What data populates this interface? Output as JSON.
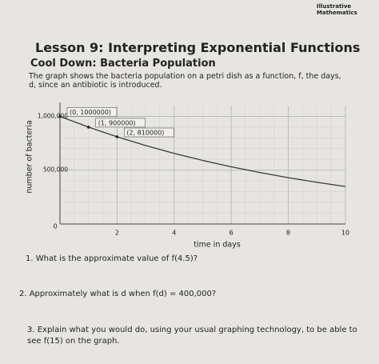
{
  "header": {
    "brand": [
      "Illustrative",
      "Mathematics"
    ]
  },
  "title": "Lesson 9: Interpreting Exponential Functions",
  "subtitle": "Cool Down: Bacteria Population",
  "intro": "The graph shows the bacteria population on a petri dish as a function, f, the days, d, since an antibiotic is introduced.",
  "chart_data": {
    "type": "line",
    "x_label": "time in days",
    "y_label": "number of bacteria",
    "x": [
      0,
      1,
      2,
      3,
      4,
      5,
      6,
      7,
      8,
      9,
      10
    ],
    "values": [
      1000000,
      900000,
      810000,
      729000,
      656100,
      590490,
      531441,
      478297,
      430467,
      387420,
      348678
    ],
    "color": "#3a3a3a",
    "xlim": [
      0,
      10
    ],
    "ylim": [
      0,
      1100000
    ],
    "xticks": [
      0,
      2,
      4,
      6,
      8,
      10
    ],
    "yticks": [
      0,
      {
        "value": 500000,
        "label": "500,000"
      },
      {
        "value": 1000000,
        "label": "1,000,000"
      }
    ],
    "grid": true,
    "annotations": [
      {
        "text": "(0, 1000000)",
        "x": 0,
        "y": 1000000
      },
      {
        "text": "(1, 900000)",
        "x": 1,
        "y": 900000
      },
      {
        "text": "(2, 810000)",
        "x": 2,
        "y": 810000
      }
    ]
  },
  "questions": [
    "1. What is the approximate value of f(4.5)?",
    "2. Approximately what is d when f(d) = 400,000?",
    "3. Explain what you would do, using your usual graphing technology, to be able to see f(15) on the graph."
  ]
}
